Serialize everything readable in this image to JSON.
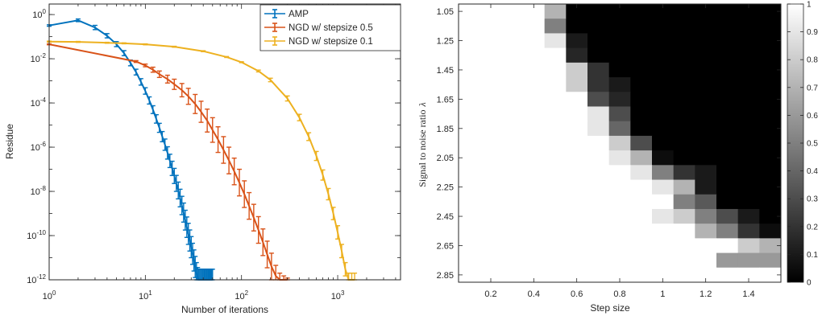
{
  "colors": {
    "amp": "#0072bd",
    "ngd05": "#d95319",
    "ngd01": "#edb120",
    "axis": "#262626"
  },
  "chart_data": [
    {
      "type": "line",
      "xscale": "log",
      "yscale": "log",
      "xlabel": "Number of iterations",
      "ylabel": "Residue",
      "xlim": [
        1,
        4500
      ],
      "ylim": [
        1e-12,
        3
      ],
      "xticks": [
        {
          "v": 1,
          "b": "10",
          "e": "0"
        },
        {
          "v": 10,
          "b": "10",
          "e": "1"
        },
        {
          "v": 100,
          "b": "10",
          "e": "2"
        },
        {
          "v": 1000,
          "b": "10",
          "e": "3"
        }
      ],
      "yticks": [
        {
          "v": 1,
          "b": "10",
          "e": "0"
        },
        {
          "v": 0.01,
          "b": "10",
          "e": "-2"
        },
        {
          "v": 0.0001,
          "b": "10",
          "e": "-4"
        },
        {
          "v": 1e-06,
          "b": "10",
          "e": "-6"
        },
        {
          "v": 1e-08,
          "b": "10",
          "e": "-8"
        },
        {
          "v": 1e-10,
          "b": "10",
          "e": "-10"
        },
        {
          "v": 1e-12,
          "b": "10",
          "e": "-12"
        }
      ],
      "legend_position": "top-right",
      "series": [
        {
          "name": "AMP",
          "color_key": "amp",
          "x": [
            1,
            2,
            3,
            4,
            5,
            6,
            7,
            8,
            9,
            10,
            11,
            12,
            13,
            14,
            15,
            16,
            17,
            18,
            19,
            20,
            21,
            22,
            23,
            24,
            25,
            26,
            27,
            28,
            29,
            30,
            31,
            32,
            33,
            34,
            35,
            36,
            37,
            38,
            39,
            40,
            41,
            42,
            43,
            44,
            45,
            46,
            47,
            48,
            49,
            50
          ],
          "y": [
            0.32,
            0.55,
            0.26,
            0.11,
            0.046,
            0.018,
            0.0065,
            0.0025,
            0.0009,
            0.00035,
            0.00013,
            5e-05,
            1.9e-05,
            7.5e-06,
            3e-06,
            1.3e-06,
            5.5e-07,
            2.4e-07,
            1.1e-07,
            5e-08,
            2.3e-08,
            1.1e-08,
            5e-09,
            2.3e-09,
            1.1e-09,
            5e-10,
            2.4e-10,
            1.2e-10,
            6e-11,
            3e-11,
            1.5e-11,
            7.5e-12,
            3.8e-12,
            2e-12,
            1.2e-12,
            1e-12,
            1e-12,
            1e-12,
            1e-12,
            1e-12,
            1e-12,
            1e-12,
            1e-12,
            1e-12,
            1e-12,
            1e-12,
            1e-12,
            1e-12,
            1e-12,
            1e-12
          ],
          "err_factor": [
            1.08,
            1.15,
            1.25,
            1.25,
            1.3,
            1.3,
            1.35,
            1.35,
            1.4,
            1.4,
            1.45,
            1.5,
            1.55,
            1.6,
            1.7,
            1.8,
            1.9,
            2,
            2.1,
            2.2,
            2.3,
            2.4,
            2.5,
            2.6,
            2.7,
            2.8,
            2.9,
            3,
            3,
            3,
            3,
            3,
            3,
            3,
            3,
            3,
            3,
            3,
            3,
            3,
            3,
            3,
            3,
            3,
            3,
            3,
            3,
            3,
            3,
            3
          ]
        },
        {
          "name": "NGD w/ stepsize 0.5",
          "color_key": "ngd05",
          "x": [
            1,
            8,
            10,
            12,
            14,
            17,
            20,
            24,
            28,
            33,
            38,
            44,
            50,
            57,
            65,
            74,
            84,
            95,
            107,
            120,
            134,
            150,
            167,
            185,
            205,
            227,
            250,
            275,
            300
          ],
          "y": [
            0.045,
            0.0075,
            0.005,
            0.0032,
            0.002,
            0.0012,
            0.0007,
            0.00038,
            0.0002,
            9e-05,
            4e-05,
            1.6e-05,
            6e-06,
            2.2e-06,
            7.5e-07,
            2.5e-07,
            8e-08,
            2.5e-08,
            7.5e-09,
            2.2e-09,
            6.5e-10,
            1.8e-10,
            5e-11,
            1.4e-11,
            4e-12,
            1.5e-12,
            1e-12,
            1e-12,
            1e-12
          ],
          "err_factor": [
            1.05,
            1.1,
            1.15,
            1.3,
            1.4,
            1.5,
            1.7,
            2,
            2.3,
            2.7,
            3,
            3.3,
            3.6,
            3.8,
            4,
            4,
            4,
            4,
            4,
            4,
            4,
            4,
            4,
            4,
            4,
            3,
            2,
            1.5,
            1.2
          ]
        },
        {
          "name": "NGD w/ stepsize 0.1",
          "color_key": "ngd01",
          "x": [
            1,
            2,
            4,
            6,
            10,
            20,
            40,
            70,
            100,
            150,
            200,
            300,
            400,
            500,
            600,
            700,
            800,
            900,
            1000,
            1100,
            1200,
            1300,
            1400,
            1500
          ],
          "y": [
            0.06,
            0.058,
            0.053,
            0.05,
            0.045,
            0.035,
            0.022,
            0.012,
            0.007,
            0.0028,
            0.0011,
            0.00016,
            2.2e-05,
            3e-06,
            4e-07,
            5.5e-08,
            7.5e-09,
            1e-09,
            1.4e-10,
            2e-11,
            3e-12,
            1e-12,
            1e-12,
            1e-12
          ],
          "err_factor": [
            1.05,
            1.05,
            1.05,
            1.05,
            1.05,
            1.05,
            1.05,
            1.05,
            1.05,
            1.1,
            1.2,
            1.3,
            1.4,
            1.5,
            1.6,
            1.7,
            1.8,
            1.9,
            2,
            2,
            2,
            2,
            2,
            2
          ]
        }
      ]
    },
    {
      "type": "heatmap",
      "xlabel": "Step size",
      "ylabel": "Signal to noise ratio",
      "ylabel_symbol": "λ",
      "x": [
        0.1,
        0.2,
        0.3,
        0.4,
        0.5,
        0.6,
        0.7,
        0.8,
        0.9,
        1,
        1.1,
        1.2,
        1.3,
        1.4,
        1.5
      ],
      "y": [
        1.05,
        1.15,
        1.25,
        1.35,
        1.45,
        1.55,
        1.65,
        1.75,
        1.85,
        1.95,
        2.05,
        2.15,
        2.25,
        2.35,
        2.45,
        2.55,
        2.65,
        2.75,
        2.85
      ],
      "xticks": [
        "0.2",
        "0.4",
        "0.6",
        "0.8",
        "1",
        "1.2",
        "1.4"
      ],
      "xtick_values": [
        0.2,
        0.4,
        0.6,
        0.8,
        1,
        1.2,
        1.4
      ],
      "yticks": [
        "1.05",
        "1.25",
        "1.45",
        "1.65",
        "1.85",
        "2.05",
        "2.25",
        "2.45",
        "2.65",
        "2.85"
      ],
      "ytick_values": [
        1.05,
        1.25,
        1.45,
        1.65,
        1.85,
        2.05,
        2.25,
        2.45,
        2.65,
        2.85
      ],
      "colorbar_ticks": [
        "0",
        "0.1",
        "0.2",
        "0.3",
        "0.4",
        "0.5",
        "0.6",
        "0.7",
        "0.8",
        "0.9",
        "1"
      ],
      "colorbar_values": [
        0,
        0.1,
        0.2,
        0.3,
        0.4,
        0.5,
        0.6,
        0.7,
        0.8,
        0.9,
        1
      ],
      "colormap": "gray",
      "values": [
        [
          1,
          1,
          1,
          1,
          0.7,
          0,
          0,
          0,
          0,
          0,
          0,
          0,
          0,
          0,
          0
        ],
        [
          1,
          1,
          1,
          1,
          0.5,
          0,
          0,
          0,
          0,
          0,
          0,
          0,
          0,
          0,
          0
        ],
        [
          1,
          1,
          1,
          1,
          0.9,
          0.1,
          0,
          0,
          0,
          0,
          0,
          0,
          0,
          0,
          0
        ],
        [
          1,
          1,
          1,
          1,
          1,
          0.15,
          0,
          0,
          0,
          0,
          0,
          0,
          0,
          0,
          0
        ],
        [
          1,
          1,
          1,
          1,
          1,
          0.8,
          0.2,
          0,
          0,
          0,
          0,
          0,
          0,
          0,
          0
        ],
        [
          1,
          1,
          1,
          1,
          1,
          0.8,
          0.2,
          0.1,
          0,
          0,
          0,
          0,
          0,
          0,
          0
        ],
        [
          1,
          1,
          1,
          1,
          1,
          1,
          0.3,
          0.15,
          0,
          0,
          0,
          0,
          0,
          0,
          0
        ],
        [
          1,
          1,
          1,
          1,
          1,
          1,
          0.9,
          0.3,
          0,
          0,
          0,
          0,
          0,
          0,
          0
        ],
        [
          1,
          1,
          1,
          1,
          1,
          1,
          0.9,
          0.4,
          0,
          0,
          0,
          0,
          0,
          0,
          0
        ],
        [
          1,
          1,
          1,
          1,
          1,
          1,
          1,
          0.8,
          0.3,
          0,
          0,
          0,
          0,
          0,
          0
        ],
        [
          1,
          1,
          1,
          1,
          1,
          1,
          1,
          0.9,
          0.7,
          0.05,
          0,
          0,
          0,
          0,
          0
        ],
        [
          1,
          1,
          1,
          1,
          1,
          1,
          1,
          1,
          0.9,
          0.5,
          0.2,
          0.1,
          0,
          0,
          0
        ],
        [
          1,
          1,
          1,
          1,
          1,
          1,
          1,
          1,
          1,
          0.9,
          0.7,
          0.1,
          0,
          0,
          0
        ],
        [
          1,
          1,
          1,
          1,
          1,
          1,
          1,
          1,
          1,
          1,
          0.5,
          0.35,
          0,
          0,
          0
        ],
        [
          1,
          1,
          1,
          1,
          1,
          1,
          1,
          1,
          1,
          0.9,
          0.8,
          0.5,
          0.3,
          0.1,
          0
        ],
        [
          1,
          1,
          1,
          1,
          1,
          1,
          1,
          1,
          1,
          1,
          1,
          0.7,
          0.5,
          0.2,
          0.05
        ],
        [
          1,
          1,
          1,
          1,
          1,
          1,
          1,
          1,
          1,
          1,
          1,
          1,
          1,
          0.8,
          0.7
        ],
        [
          1,
          1,
          1,
          1,
          1,
          1,
          1,
          1,
          1,
          1,
          1,
          1,
          0.6,
          0.6,
          0.6
        ],
        [
          1,
          1,
          1,
          1,
          1,
          1,
          1,
          1,
          1,
          1,
          1,
          1,
          1,
          1,
          1
        ]
      ]
    }
  ]
}
